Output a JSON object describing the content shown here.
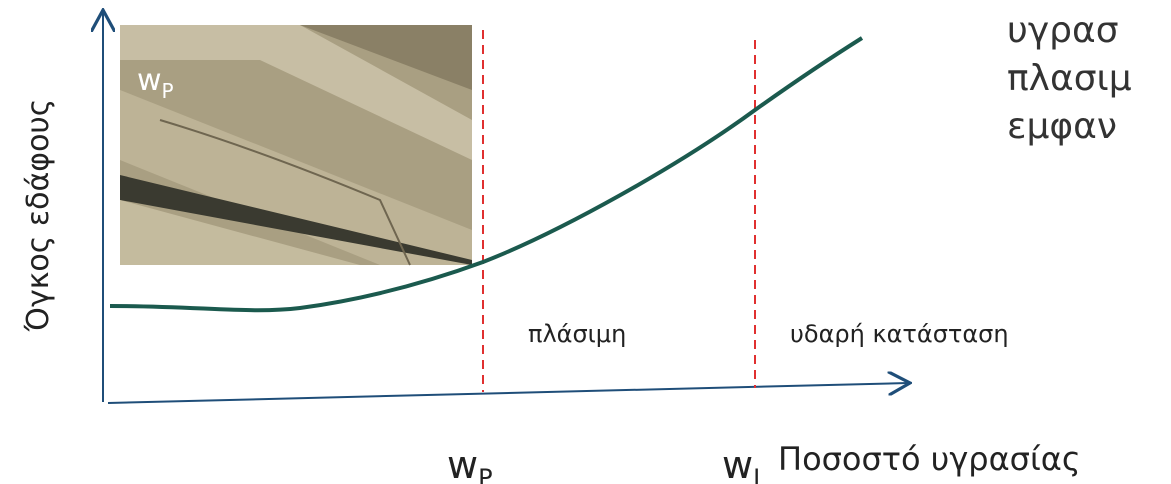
{
  "y_axis_label": "Όγκος εδάφους",
  "x_axis_label": "Ποσοστό υγρασίας",
  "photo_label": {
    "main": "w",
    "sub": "P"
  },
  "limits": [
    {
      "main": "w",
      "sub": "P"
    },
    {
      "main": "w",
      "sub": "L"
    }
  ],
  "regions": [
    "πλάσιμη",
    "υδαρή κατάσταση"
  ],
  "side_text": [
    "υγρασ",
    "πλασιμ",
    "εμφαν"
  ]
}
